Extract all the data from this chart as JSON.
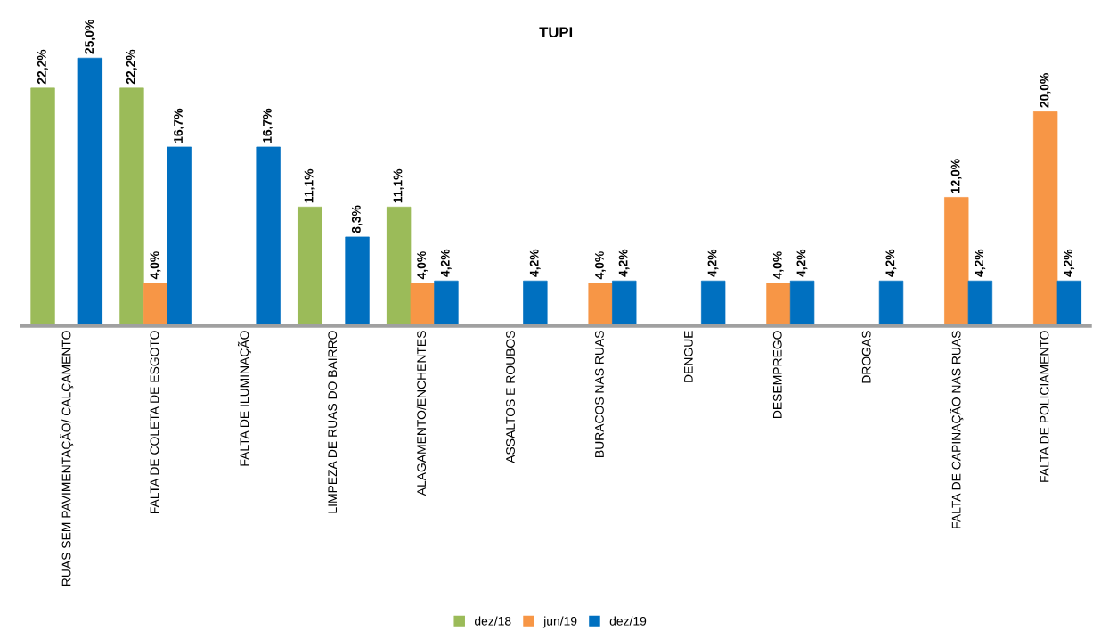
{
  "chart_data": {
    "type": "bar",
    "title": "TUPI",
    "categories": [
      "RUAS SEM PAVIMENTAÇÃO/ CALÇAMENTO",
      "FALTA DE COLETA DE ESGOTO",
      "FALTA DE ILUMINAÇÃO",
      "LIMPEZA DE RUAS DO BAIRRO",
      "ALAGAMENTO/ENCHENTES",
      "ASSALTOS E ROUBOS",
      "BURACOS NAS RUAS",
      "DENGUE",
      "DESEMPREGO",
      "DROGAS",
      "FALTA DE CAPINAÇÃO NAS RUAS",
      "FALTA DE POLICIAMENTO"
    ],
    "series": [
      {
        "name": "dez/18",
        "color": "#9bbb59",
        "values": [
          22.2,
          22.2,
          0,
          11.1,
          11.1,
          0,
          0,
          0,
          0,
          0,
          0,
          0
        ],
        "value_labels": [
          "22,2%",
          "22,2%",
          null,
          "11,1%",
          "11,1%",
          null,
          null,
          null,
          null,
          null,
          null,
          null
        ]
      },
      {
        "name": "jun/19",
        "color": "#f79646",
        "values": [
          0,
          4.0,
          0,
          0,
          4.0,
          0,
          4.0,
          0,
          4.0,
          0,
          12.0,
          20.0
        ],
        "value_labels": [
          null,
          "4,0%",
          null,
          null,
          "4,0%",
          null,
          "4,0%",
          null,
          "4,0%",
          null,
          "12,0%",
          "20,0%"
        ]
      },
      {
        "name": "dez/19",
        "color": "#0070c0",
        "values": [
          25.0,
          16.7,
          16.7,
          8.3,
          4.2,
          4.2,
          4.2,
          4.2,
          4.2,
          4.2,
          4.2,
          4.2
        ],
        "value_labels": [
          "25,0%",
          "16,7%",
          "16,7%",
          "8,3%",
          "4,2%",
          "4,2%",
          "4,2%",
          "4,2%",
          "4,2%",
          "4,2%",
          "4,2%",
          "4,2%"
        ]
      }
    ],
    "legend": "bottom",
    "grid": false
  }
}
